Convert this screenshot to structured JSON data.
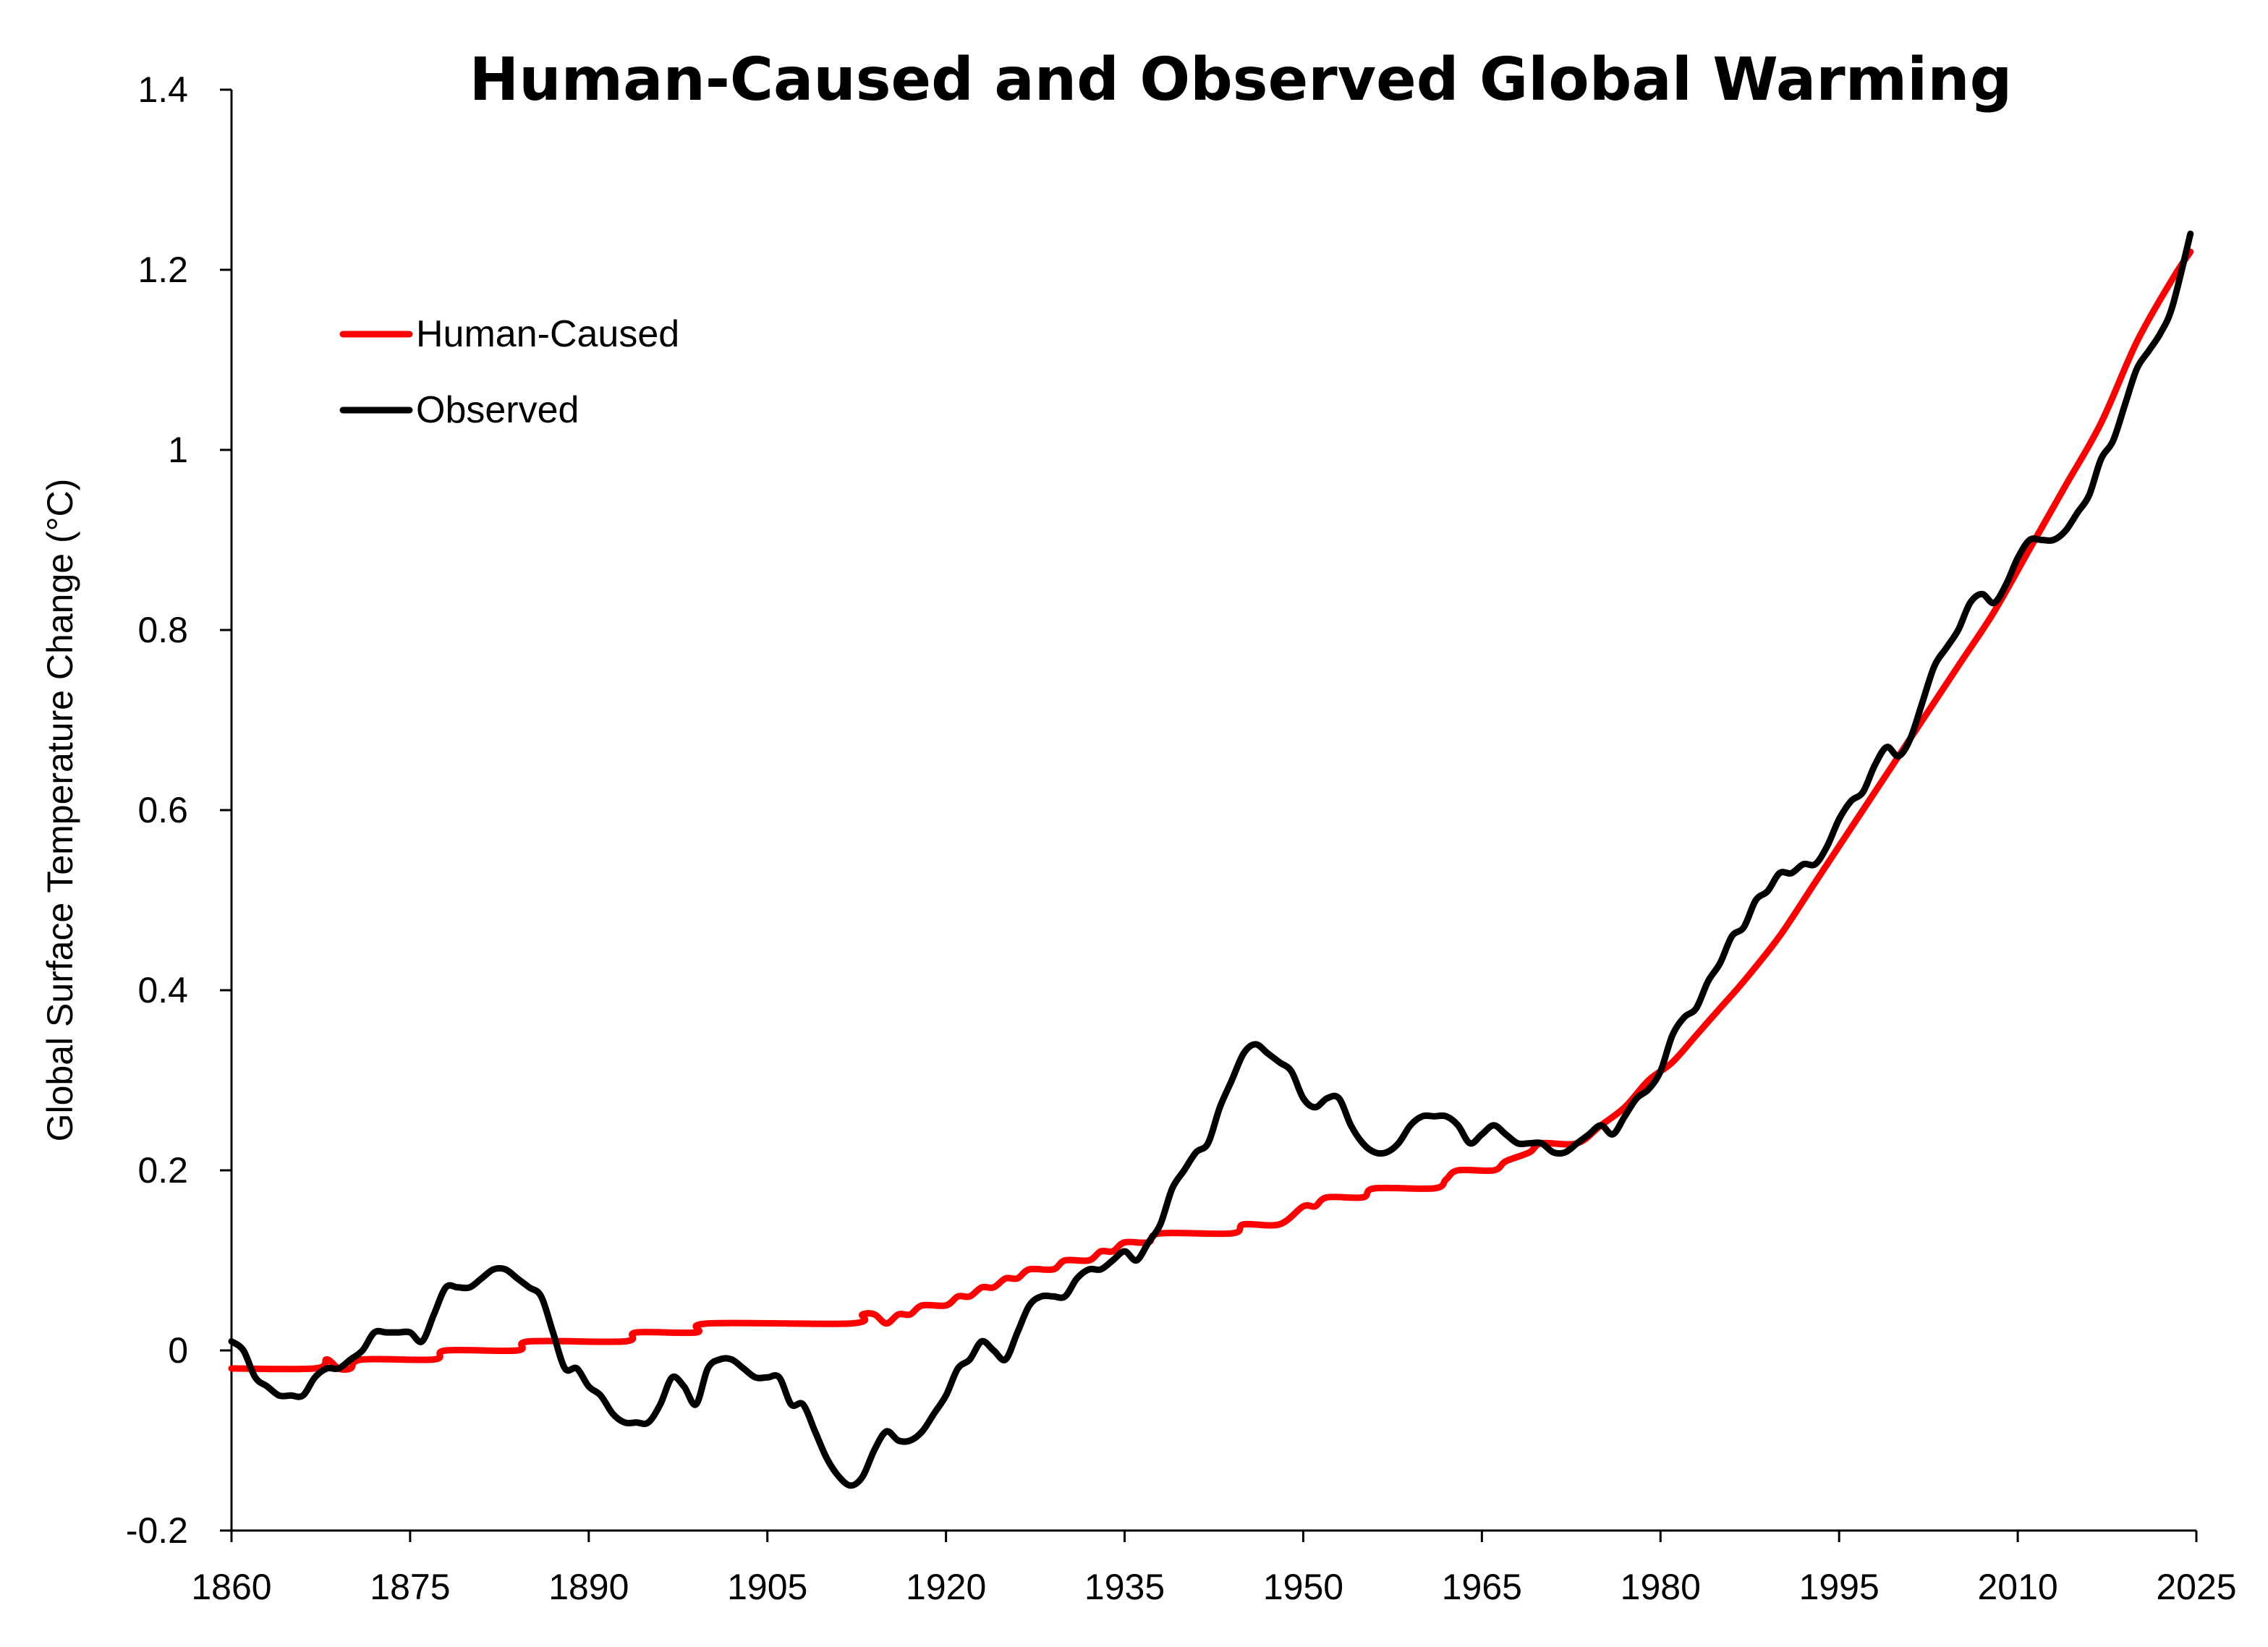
{
  "chart_data": {
    "type": "line",
    "title": "Human-Caused and Observed Global Warming",
    "xlabel": "",
    "ylabel": "Global Surface Temperature Change (°C)",
    "xlim": [
      1860,
      2025
    ],
    "ylim": [
      -0.2,
      1.4
    ],
    "xticks": [
      "1860",
      "1875",
      "1890",
      "1905",
      "1920",
      "1935",
      "1950",
      "1965",
      "1980",
      "1995",
      "2010",
      "2025"
    ],
    "yticks": [
      "-0.2",
      "0",
      "0.2",
      "0.4",
      "0.6",
      "0.8",
      "1",
      "1.2",
      "1.4"
    ],
    "grid": false,
    "legend_position": "top-left",
    "series": [
      {
        "name": "Human-Caused",
        "color": "#ff0000",
        "points": [
          [
            1860,
            -0.02
          ],
          [
            1867,
            -0.02
          ],
          [
            1868,
            -0.01
          ],
          [
            1869,
            -0.02
          ],
          [
            1870,
            -0.02
          ],
          [
            1871,
            -0.01
          ],
          [
            1877,
            -0.01
          ],
          [
            1878,
            0.0
          ],
          [
            1884,
            0.0
          ],
          [
            1885,
            0.01
          ],
          [
            1893,
            0.01
          ],
          [
            1894,
            0.02
          ],
          [
            1899,
            0.02
          ],
          [
            1900,
            0.03
          ],
          [
            1912,
            0.03
          ],
          [
            1913,
            0.04
          ],
          [
            1914,
            0.04
          ],
          [
            1915,
            0.03
          ],
          [
            1916,
            0.04
          ],
          [
            1917,
            0.04
          ],
          [
            1918,
            0.05
          ],
          [
            1920,
            0.05
          ],
          [
            1921,
            0.06
          ],
          [
            1922,
            0.06
          ],
          [
            1923,
            0.07
          ],
          [
            1924,
            0.07
          ],
          [
            1925,
            0.08
          ],
          [
            1926,
            0.08
          ],
          [
            1927,
            0.09
          ],
          [
            1929,
            0.09
          ],
          [
            1930,
            0.1
          ],
          [
            1932,
            0.1
          ],
          [
            1933,
            0.11
          ],
          [
            1934,
            0.11
          ],
          [
            1935,
            0.12
          ],
          [
            1937,
            0.12
          ],
          [
            1938,
            0.13
          ],
          [
            1944,
            0.13
          ],
          [
            1945,
            0.14
          ],
          [
            1948,
            0.14
          ],
          [
            1950,
            0.16
          ],
          [
            1951,
            0.16
          ],
          [
            1952,
            0.17
          ],
          [
            1955,
            0.17
          ],
          [
            1956,
            0.18
          ],
          [
            1961,
            0.18
          ],
          [
            1962,
            0.19
          ],
          [
            1963,
            0.2
          ],
          [
            1966,
            0.2
          ],
          [
            1967,
            0.21
          ],
          [
            1969,
            0.22
          ],
          [
            1970,
            0.23
          ],
          [
            1973,
            0.23
          ],
          [
            1975,
            0.25
          ],
          [
            1977,
            0.27
          ],
          [
            1979,
            0.3
          ],
          [
            1981,
            0.32
          ],
          [
            1983,
            0.35
          ],
          [
            1985,
            0.38
          ],
          [
            1987,
            0.41
          ],
          [
            1990,
            0.46
          ],
          [
            1993,
            0.52
          ],
          [
            1996,
            0.58
          ],
          [
            1999,
            0.64
          ],
          [
            2002,
            0.7
          ],
          [
            2005,
            0.76
          ],
          [
            2008,
            0.82
          ],
          [
            2011,
            0.89
          ],
          [
            2014,
            0.96
          ],
          [
            2017,
            1.03
          ],
          [
            2020,
            1.12
          ],
          [
            2023,
            1.19
          ],
          [
            2024.5,
            1.22
          ]
        ]
      },
      {
        "name": "Observed",
        "color": "#000000",
        "points": [
          [
            1860,
            0.01
          ],
          [
            1861,
            0.0
          ],
          [
            1862,
            -0.03
          ],
          [
            1863,
            -0.04
          ],
          [
            1864,
            -0.05
          ],
          [
            1865,
            -0.05
          ],
          [
            1866,
            -0.05
          ],
          [
            1867,
            -0.03
          ],
          [
            1868,
            -0.02
          ],
          [
            1869,
            -0.02
          ],
          [
            1870,
            -0.01
          ],
          [
            1871,
            0.0
          ],
          [
            1872,
            0.02
          ],
          [
            1873,
            0.02
          ],
          [
            1874,
            0.02
          ],
          [
            1875,
            0.02
          ],
          [
            1876,
            0.01
          ],
          [
            1877,
            0.04
          ],
          [
            1878,
            0.07
          ],
          [
            1879,
            0.07
          ],
          [
            1880,
            0.07
          ],
          [
            1881,
            0.08
          ],
          [
            1882,
            0.09
          ],
          [
            1883,
            0.09
          ],
          [
            1884,
            0.08
          ],
          [
            1885,
            0.07
          ],
          [
            1886,
            0.06
          ],
          [
            1887,
            0.02
          ],
          [
            1888,
            -0.02
          ],
          [
            1889,
            -0.02
          ],
          [
            1890,
            -0.04
          ],
          [
            1891,
            -0.05
          ],
          [
            1892,
            -0.07
          ],
          [
            1893,
            -0.08
          ],
          [
            1894,
            -0.08
          ],
          [
            1895,
            -0.08
          ],
          [
            1896,
            -0.06
          ],
          [
            1897,
            -0.03
          ],
          [
            1898,
            -0.04
          ],
          [
            1899,
            -0.06
          ],
          [
            1900,
            -0.02
          ],
          [
            1901,
            -0.01
          ],
          [
            1902,
            -0.01
          ],
          [
            1903,
            -0.02
          ],
          [
            1904,
            -0.03
          ],
          [
            1905,
            -0.03
          ],
          [
            1906,
            -0.03
          ],
          [
            1907,
            -0.06
          ],
          [
            1908,
            -0.06
          ],
          [
            1909,
            -0.09
          ],
          [
            1910,
            -0.12
          ],
          [
            1911,
            -0.14
          ],
          [
            1912,
            -0.15
          ],
          [
            1913,
            -0.14
          ],
          [
            1914,
            -0.11
          ],
          [
            1915,
            -0.09
          ],
          [
            1916,
            -0.1
          ],
          [
            1917,
            -0.1
          ],
          [
            1918,
            -0.09
          ],
          [
            1919,
            -0.07
          ],
          [
            1920,
            -0.05
          ],
          [
            1921,
            -0.02
          ],
          [
            1922,
            -0.01
          ],
          [
            1923,
            0.01
          ],
          [
            1924,
            0.0
          ],
          [
            1925,
            -0.01
          ],
          [
            1926,
            0.02
          ],
          [
            1927,
            0.05
          ],
          [
            1928,
            0.06
          ],
          [
            1929,
            0.06
          ],
          [
            1930,
            0.06
          ],
          [
            1931,
            0.08
          ],
          [
            1932,
            0.09
          ],
          [
            1933,
            0.09
          ],
          [
            1934,
            0.1
          ],
          [
            1935,
            0.11
          ],
          [
            1936,
            0.1
          ],
          [
            1937,
            0.12
          ],
          [
            1938,
            0.14
          ],
          [
            1939,
            0.18
          ],
          [
            1940,
            0.2
          ],
          [
            1941,
            0.22
          ],
          [
            1942,
            0.23
          ],
          [
            1943,
            0.27
          ],
          [
            1944,
            0.3
          ],
          [
            1945,
            0.33
          ],
          [
            1946,
            0.34
          ],
          [
            1947,
            0.33
          ],
          [
            1948,
            0.32
          ],
          [
            1949,
            0.31
          ],
          [
            1950,
            0.28
          ],
          [
            1951,
            0.27
          ],
          [
            1952,
            0.28
          ],
          [
            1953,
            0.28
          ],
          [
            1954,
            0.25
          ],
          [
            1955,
            0.23
          ],
          [
            1956,
            0.22
          ],
          [
            1957,
            0.22
          ],
          [
            1958,
            0.23
          ],
          [
            1959,
            0.25
          ],
          [
            1960,
            0.26
          ],
          [
            1961,
            0.26
          ],
          [
            1962,
            0.26
          ],
          [
            1963,
            0.25
          ],
          [
            1964,
            0.23
          ],
          [
            1965,
            0.24
          ],
          [
            1966,
            0.25
          ],
          [
            1967,
            0.24
          ],
          [
            1968,
            0.23
          ],
          [
            1969,
            0.23
          ],
          [
            1970,
            0.23
          ],
          [
            1971,
            0.22
          ],
          [
            1972,
            0.22
          ],
          [
            1973,
            0.23
          ],
          [
            1974,
            0.24
          ],
          [
            1975,
            0.25
          ],
          [
            1976,
            0.24
          ],
          [
            1977,
            0.26
          ],
          [
            1978,
            0.28
          ],
          [
            1979,
            0.29
          ],
          [
            1980,
            0.31
          ],
          [
            1981,
            0.35
          ],
          [
            1982,
            0.37
          ],
          [
            1983,
            0.38
          ],
          [
            1984,
            0.41
          ],
          [
            1985,
            0.43
          ],
          [
            1986,
            0.46
          ],
          [
            1987,
            0.47
          ],
          [
            1988,
            0.5
          ],
          [
            1989,
            0.51
          ],
          [
            1990,
            0.53
          ],
          [
            1991,
            0.53
          ],
          [
            1992,
            0.54
          ],
          [
            1993,
            0.54
          ],
          [
            1994,
            0.56
          ],
          [
            1995,
            0.59
          ],
          [
            1996,
            0.61
          ],
          [
            1997,
            0.62
          ],
          [
            1998,
            0.65
          ],
          [
            1999,
            0.67
          ],
          [
            2000,
            0.66
          ],
          [
            2001,
            0.68
          ],
          [
            2002,
            0.72
          ],
          [
            2003,
            0.76
          ],
          [
            2004,
            0.78
          ],
          [
            2005,
            0.8
          ],
          [
            2006,
            0.83
          ],
          [
            2007,
            0.84
          ],
          [
            2008,
            0.83
          ],
          [
            2009,
            0.85
          ],
          [
            2010,
            0.88
          ],
          [
            2011,
            0.9
          ],
          [
            2012,
            0.9
          ],
          [
            2013,
            0.9
          ],
          [
            2014,
            0.91
          ],
          [
            2015,
            0.93
          ],
          [
            2016,
            0.95
          ],
          [
            2017,
            0.99
          ],
          [
            2018,
            1.01
          ],
          [
            2019,
            1.05
          ],
          [
            2020,
            1.09
          ],
          [
            2021,
            1.11
          ],
          [
            2022,
            1.13
          ],
          [
            2023,
            1.16
          ],
          [
            2024.5,
            1.24
          ]
        ]
      }
    ]
  }
}
